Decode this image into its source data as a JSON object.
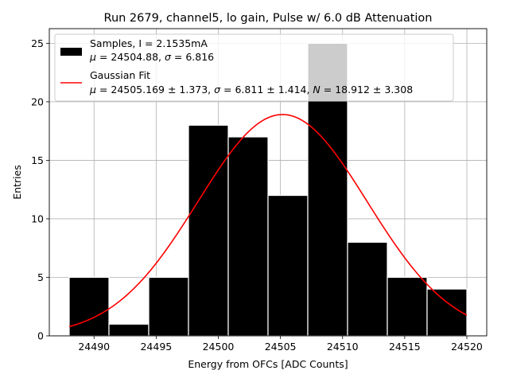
{
  "chart_data": {
    "type": "bar",
    "title": "Run 2679, channel5, lo gain, Pulse w/ 6.0 dB Attenuation",
    "xlabel": "Energy from OFCs [ADC Counts]",
    "ylabel": "Entries",
    "xlim": [
      24486.4,
      24521.6
    ],
    "ylim": [
      0,
      26.25
    ],
    "xticks": [
      24490,
      24495,
      24500,
      24505,
      24510,
      24515,
      24520
    ],
    "yticks": [
      0,
      5,
      10,
      15,
      20,
      25
    ],
    "grid": true,
    "legend_position": "top",
    "bins": {
      "edges": [
        24488.0,
        24491.2,
        24494.4,
        24497.6,
        24500.8,
        24504.0,
        24507.2,
        24510.4,
        24513.6,
        24516.8,
        24520.0
      ],
      "counts": [
        5,
        1,
        5,
        18,
        17,
        12,
        25,
        8,
        5,
        4
      ]
    },
    "fit": {
      "type": "gaussian",
      "mu": 24505.169,
      "sigma": 6.811,
      "N": 18.912,
      "range": [
        24488.0,
        24520.0
      ],
      "color": "#ff0000"
    },
    "series": [
      {
        "name": "Samples",
        "color": "#000000"
      },
      {
        "name": "Gaussian Fit",
        "color": "#ff0000"
      }
    ],
    "legend": {
      "samples_line1": "Samples, I = 2.1535mA",
      "samples_line2_mu": "μ",
      "samples_line2_rest": " = 24504.88, ",
      "samples_line2_sigma": "σ",
      "samples_line2_rest2": " = 6.816",
      "fit_line1": "Gaussian Fit",
      "fit_line2_mu": "μ",
      "fit_line2_a": " = 24505.169 ± 1.373, ",
      "fit_line2_sigma": "σ",
      "fit_line2_b": " = 6.811 ± 1.414, ",
      "fit_line2_N": "N",
      "fit_line2_c": " = 18.912 ± 3.308"
    }
  }
}
